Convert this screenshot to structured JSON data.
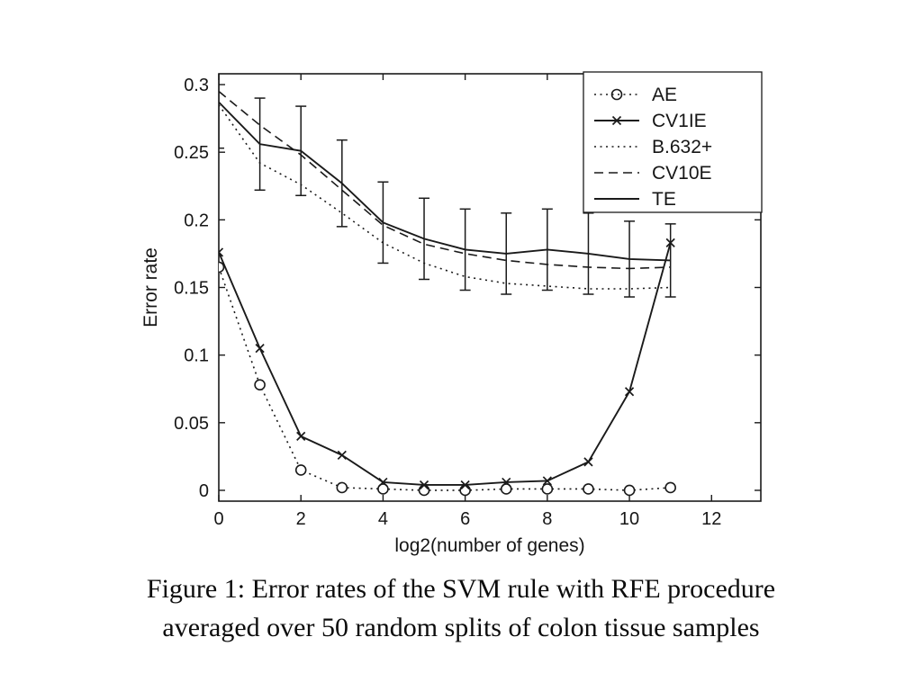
{
  "caption": {
    "line1": "Figure 1: Error rates of the SVM rule with RFE procedure",
    "line2": "averaged over 50 random splits of colon tissue samples"
  },
  "colors": {
    "ink": "#1a1a1a",
    "background": "#ffffff"
  },
  "chart_data": {
    "type": "line",
    "title": "",
    "xlabel": "log2(number of genes)",
    "ylabel": "Error rate",
    "xlim": [
      0,
      13.2
    ],
    "ylim": [
      -0.008,
      0.308
    ],
    "x_ticks": [
      0,
      2,
      4,
      6,
      8,
      10,
      12
    ],
    "x_tick_labels": [
      "0",
      "2",
      "4",
      "6",
      "8",
      "10",
      "12"
    ],
    "y_ticks": [
      0,
      0.05,
      0.1,
      0.15,
      0.2,
      0.25,
      0.3
    ],
    "y_tick_labels": [
      "0",
      "0.05",
      "0.1",
      "0.15",
      "0.2",
      "0.25",
      "0.3"
    ],
    "grid": false,
    "legend_position": "top-right",
    "x": [
      0,
      1,
      2,
      3,
      4,
      5,
      6,
      7,
      8,
      9,
      10,
      11
    ],
    "series": [
      {
        "name": "AE",
        "style": "dotted",
        "marker": "circle",
        "values": [
          0.165,
          0.078,
          0.015,
          0.002,
          0.001,
          0.0,
          0.0,
          0.001,
          0.001,
          0.001,
          0.0,
          0.002
        ]
      },
      {
        "name": "CV1IE",
        "style": "solid",
        "marker": "x",
        "values": [
          0.176,
          0.105,
          0.04,
          0.026,
          0.006,
          0.004,
          0.004,
          0.006,
          0.007,
          0.021,
          0.073,
          0.183
        ]
      },
      {
        "name": "B.632+",
        "style": "dotted",
        "marker": "none",
        "values": [
          0.285,
          0.242,
          0.226,
          0.205,
          0.183,
          0.168,
          0.158,
          0.153,
          0.151,
          0.149,
          0.149,
          0.15
        ]
      },
      {
        "name": "CV10E",
        "style": "dashed",
        "marker": "none",
        "values": [
          0.295,
          0.27,
          0.248,
          0.222,
          0.196,
          0.182,
          0.175,
          0.17,
          0.167,
          0.165,
          0.164,
          0.165
        ]
      },
      {
        "name": "TE",
        "style": "solid",
        "marker": "none",
        "values": [
          0.287,
          0.256,
          0.251,
          0.227,
          0.198,
          0.186,
          0.178,
          0.175,
          0.178,
          0.175,
          0.171,
          0.17
        ],
        "error": [
          0.034,
          0.034,
          0.033,
          0.032,
          0.03,
          0.03,
          0.03,
          0.03,
          0.03,
          0.03,
          0.028,
          0.027
        ]
      }
    ]
  }
}
